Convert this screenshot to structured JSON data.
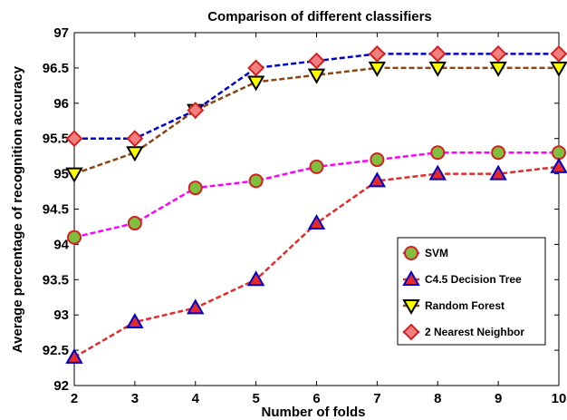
{
  "chart_data": {
    "type": "line",
    "title": "Comparison of different classifiers",
    "xlabel": "Number of folds",
    "ylabel": "Average percentage of recognition accuracy",
    "x": [
      2,
      3,
      4,
      5,
      6,
      7,
      8,
      9,
      10
    ],
    "xlim": [
      2,
      10
    ],
    "ylim": [
      92,
      97
    ],
    "xticks": [
      "2",
      "3",
      "4",
      "5",
      "6",
      "7",
      "8",
      "9",
      "10"
    ],
    "yticks": [
      "92",
      "92.5",
      "93",
      "93.5",
      "94",
      "94.5",
      "95",
      "95.5",
      "96",
      "96.5",
      "97"
    ],
    "grid": false,
    "legend_position": "lower-right",
    "series": [
      {
        "name": "SVM",
        "values": [
          94.1,
          94.3,
          94.8,
          94.9,
          95.1,
          95.2,
          95.3,
          95.3,
          95.3
        ],
        "marker": "circle",
        "line_color": "#ff00ff",
        "marker_fill": "#7fbf3f",
        "marker_edge": "#d62020"
      },
      {
        "name": "C4.5 Decision Tree",
        "values": [
          92.4,
          92.9,
          93.1,
          93.5,
          94.3,
          94.9,
          95.0,
          95.0,
          95.1
        ],
        "marker": "triangle-up",
        "line_color": "#e52a2a",
        "marker_fill": "#e52a2a",
        "marker_edge": "#0000cc"
      },
      {
        "name": "Random Forest",
        "values": [
          95.0,
          95.3,
          95.9,
          96.3,
          96.4,
          96.5,
          96.5,
          96.5,
          96.5
        ],
        "marker": "triangle-down",
        "line_color": "#8b4513",
        "marker_fill": "#ffff00",
        "marker_edge": "#000000"
      },
      {
        "name": "2 Nearest Neighbor",
        "values": [
          95.5,
          95.5,
          95.9,
          96.5,
          96.6,
          96.7,
          96.7,
          96.7,
          96.7
        ],
        "marker": "diamond",
        "line_color": "#0000cc",
        "marker_fill": "#f08080",
        "marker_edge": "#d62020"
      }
    ]
  }
}
